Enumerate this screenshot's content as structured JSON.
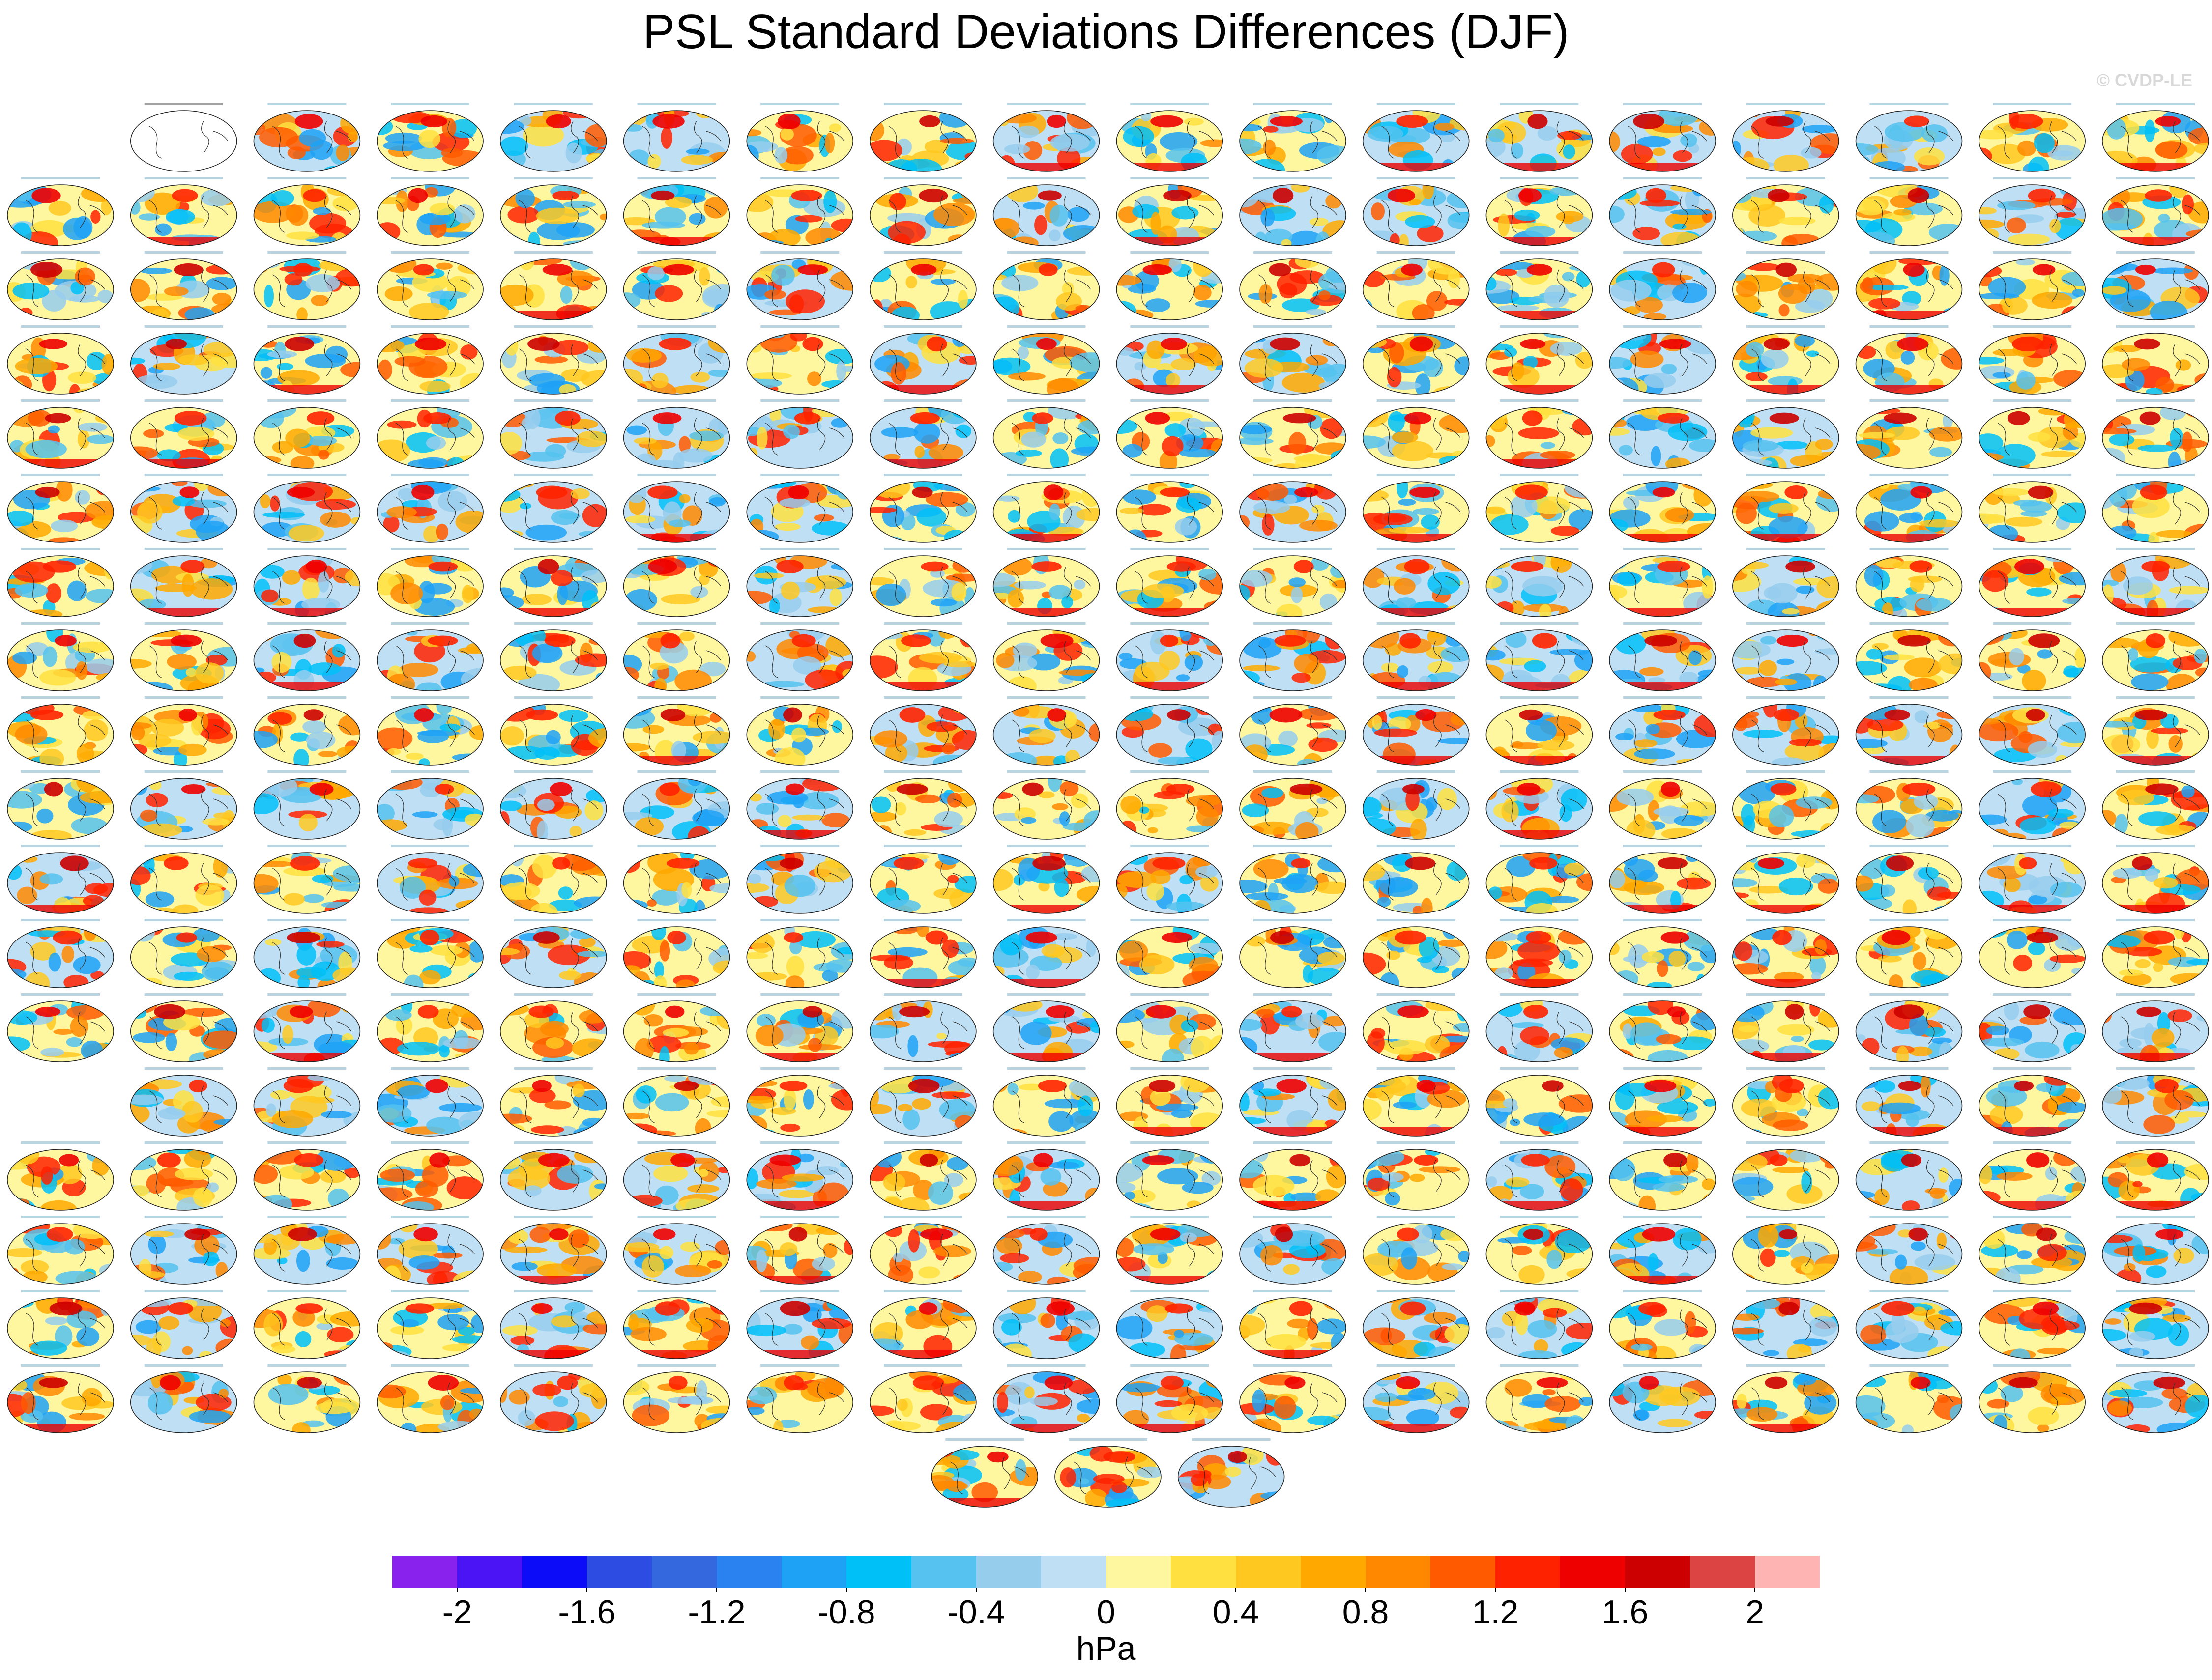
{
  "header": {
    "title": "PSL Standard Deviations Differences (DJF)",
    "watermark": "© CVDP-LE"
  },
  "colorbar": {
    "levels": [
      -2,
      -1.8,
      -1.6,
      -1.4,
      -1.2,
      -1,
      -0.8,
      -0.6,
      -0.4,
      -0.2,
      0,
      0.2,
      0.4,
      0.6,
      0.8,
      1,
      1.2,
      1.4,
      1.6,
      1.8,
      2
    ],
    "ticks": [
      -2,
      -1.6,
      -1.2,
      -0.8,
      -0.4,
      0,
      0.4,
      0.8,
      1.2,
      1.6,
      2
    ],
    "colors": [
      "#8a22ee",
      "#4a14f5",
      "#0c0cf8",
      "#2c4ce2",
      "#3468de",
      "#2a82f0",
      "#1ea2f6",
      "#00c0f8",
      "#55c2ef",
      "#96cded",
      "#bfe0f4",
      "#fff7a0",
      "#ffe040",
      "#ffc820",
      "#ffa800",
      "#ff8800",
      "#ff5a00",
      "#ff2200",
      "#ee0000",
      "#cc0000",
      "#dc4444",
      "#ffb4b4"
    ],
    "label": "hPa"
  }
}
